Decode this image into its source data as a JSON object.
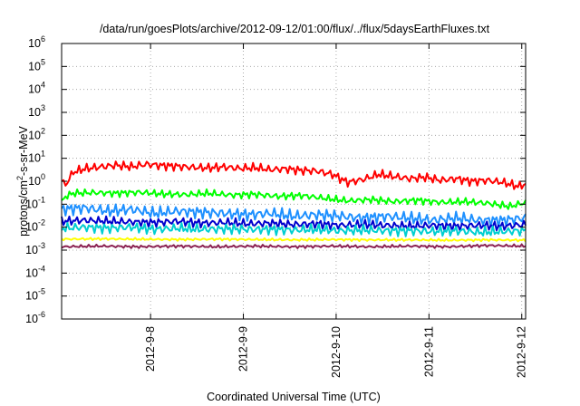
{
  "chart_data": {
    "type": "line",
    "title": "/data/run/goesPlots/archive/2012-09-12/01:00/flux/../flux/5daysEarthFluxes.txt",
    "xlabel": "Coordinated Universal Time (UTC)",
    "ylabel": "protons/cm²-s-sr-MeV",
    "ylabel_parts": {
      "a": "protons/cm",
      "sup": "2",
      "b": "-s-sr-MeV"
    },
    "y_scale": "log",
    "ylim": [
      1e-06,
      1000000.0
    ],
    "y_ticks": [
      {
        "exp": -6,
        "base": "10",
        "sup": "-6"
      },
      {
        "exp": -5,
        "base": "10",
        "sup": "-5"
      },
      {
        "exp": -4,
        "base": "10",
        "sup": "-4"
      },
      {
        "exp": -3,
        "base": "10",
        "sup": "-3"
      },
      {
        "exp": -2,
        "base": "10",
        "sup": "-2"
      },
      {
        "exp": -1,
        "base": "10",
        "sup": "-1"
      },
      {
        "exp": 0,
        "base": "10",
        "sup": "0"
      },
      {
        "exp": 1,
        "base": "10",
        "sup": "1"
      },
      {
        "exp": 2,
        "base": "10",
        "sup": "2"
      },
      {
        "exp": 3,
        "base": "10",
        "sup": "3"
      },
      {
        "exp": 4,
        "base": "10",
        "sup": "4"
      },
      {
        "exp": 5,
        "base": "10",
        "sup": "5"
      },
      {
        "exp": 6,
        "base": "10",
        "sup": "6"
      }
    ],
    "xlim": [
      "2012-09-07 01:00",
      "2012-09-12 01:00"
    ],
    "x_ticks": [
      {
        "label": "2012-9-8",
        "value": "2012-09-08"
      },
      {
        "label": "2012-9-9",
        "value": "2012-09-09"
      },
      {
        "label": "2012-9-10",
        "value": "2012-09-10"
      },
      {
        "label": "2012-9-11",
        "value": "2012-09-11"
      },
      {
        "label": "2012-9-12",
        "value": "2012-09-12"
      }
    ],
    "grid": true,
    "legend": "none",
    "series": [
      {
        "color": "#ff0000",
        "x_hours_from_2012_09_07": [
          0,
          1,
          3,
          6,
          10,
          14,
          18,
          22,
          26,
          30,
          34,
          38,
          42,
          46,
          50,
          54,
          58,
          62,
          66,
          70,
          74,
          78,
          82,
          86,
          90,
          94,
          98,
          102,
          106,
          110,
          114,
          118,
          120
        ],
        "values": [
          1.0,
          0.7,
          2.5,
          3.5,
          4.2,
          5.0,
          4.3,
          5.5,
          4.8,
          4.5,
          4.0,
          3.8,
          4.2,
          3.6,
          3.9,
          3.2,
          3.5,
          3.0,
          2.8,
          2.0,
          0.9,
          1.2,
          2.0,
          1.6,
          1.3,
          1.5,
          1.1,
          1.3,
          1.0,
          1.1,
          0.9,
          0.6,
          0.75
        ]
      },
      {
        "color": "#00ff00",
        "x_hours_from_2012_09_07": [
          0,
          1,
          3,
          8,
          14,
          20,
          26,
          32,
          38,
          44,
          50,
          56,
          62,
          68,
          74,
          80,
          86,
          92,
          98,
          104,
          110,
          116,
          120
        ],
        "values": [
          0.12,
          0.22,
          0.3,
          0.32,
          0.3,
          0.33,
          0.28,
          0.26,
          0.3,
          0.25,
          0.27,
          0.22,
          0.24,
          0.18,
          0.14,
          0.16,
          0.13,
          0.15,
          0.12,
          0.13,
          0.11,
          0.08,
          0.12
        ]
      },
      {
        "color": "#1e90ff",
        "x_hours_from_2012_09_07": [
          0,
          6,
          12,
          18,
          24,
          30,
          36,
          42,
          48,
          54,
          60,
          66,
          72,
          78,
          84,
          90,
          96,
          102,
          108,
          114,
          120
        ],
        "values": [
          0.06,
          0.07,
          0.05,
          0.06,
          0.04,
          0.05,
          0.045,
          0.04,
          0.035,
          0.04,
          0.03,
          0.035,
          0.03,
          0.025,
          0.03,
          0.025,
          0.02,
          0.025,
          0.02,
          0.02,
          0.025
        ]
      },
      {
        "color": "#0000cd",
        "x_hours_from_2012_09_07": [
          0,
          6,
          12,
          18,
          24,
          30,
          36,
          42,
          48,
          54,
          60,
          66,
          72,
          78,
          84,
          90,
          96,
          102,
          108,
          114,
          120
        ],
        "values": [
          0.018,
          0.02,
          0.018,
          0.017,
          0.016,
          0.018,
          0.015,
          0.016,
          0.014,
          0.015,
          0.013,
          0.014,
          0.012,
          0.013,
          0.012,
          0.011,
          0.012,
          0.011,
          0.012,
          0.011,
          0.013
        ]
      },
      {
        "color": "#00ced1",
        "x_hours_from_2012_09_07": [
          0,
          6,
          12,
          18,
          24,
          30,
          36,
          42,
          48,
          54,
          60,
          66,
          72,
          78,
          84,
          90,
          96,
          102,
          108,
          114,
          120
        ],
        "values": [
          0.009,
          0.01,
          0.009,
          0.01,
          0.008,
          0.009,
          0.008,
          0.0085,
          0.008,
          0.008,
          0.0075,
          0.008,
          0.007,
          0.0075,
          0.007,
          0.007,
          0.0065,
          0.007,
          0.006,
          0.0065,
          0.007
        ]
      },
      {
        "color": "#ffff00",
        "x_hours_from_2012_09_07": [
          0,
          10,
          20,
          30,
          40,
          50,
          60,
          70,
          80,
          90,
          100,
          110,
          120
        ],
        "values": [
          0.003,
          0.0031,
          0.003,
          0.0029,
          0.003,
          0.0029,
          0.0028,
          0.0029,
          0.0028,
          0.0028,
          0.0027,
          0.0028,
          0.0027
        ]
      },
      {
        "color": "#8b2252",
        "x_hours_from_2012_09_07": [
          0,
          10,
          20,
          30,
          40,
          50,
          60,
          70,
          80,
          90,
          100,
          110,
          120
        ],
        "values": [
          0.0014,
          0.0015,
          0.0014,
          0.0015,
          0.0014,
          0.0015,
          0.0014,
          0.0015,
          0.0014,
          0.0015,
          0.0014,
          0.0016,
          0.0015
        ]
      }
    ]
  }
}
